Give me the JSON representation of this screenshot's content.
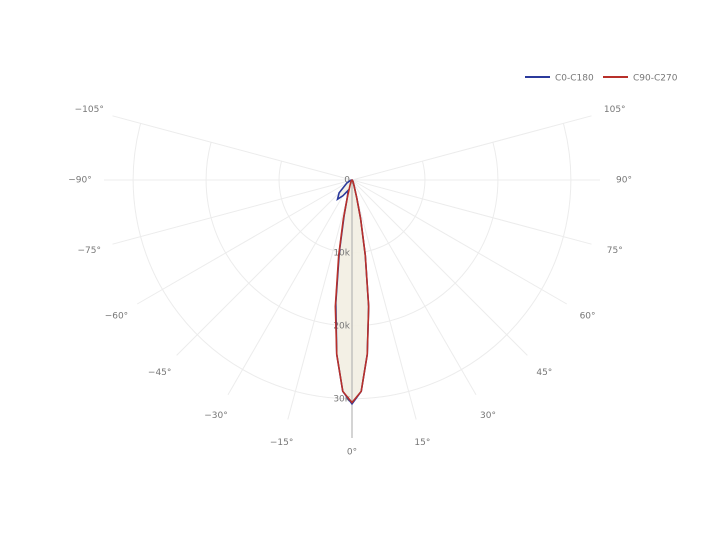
{
  "chart_data": {
    "type": "polar",
    "theta": [
      -90,
      -75,
      -60,
      -45,
      -37,
      -30,
      -20,
      -15,
      -12.5,
      -10,
      -7.5,
      -5,
      -2.5,
      0,
      2.5,
      5,
      7.5,
      10,
      12.5,
      15,
      20,
      30,
      45,
      60,
      75,
      90
    ],
    "series": [
      {
        "name": "C0-C180",
        "color": "#2b3a9c",
        "values": [
          0,
          200,
          800,
          2500,
          3300,
          2500,
          1500,
          2500,
          5000,
          10000,
          17000,
          24000,
          29000,
          30700,
          29000,
          24000,
          17500,
          10500,
          5500,
          2500,
          800,
          300,
          100,
          50,
          20,
          0
        ]
      },
      {
        "name": "C90-C270",
        "color": "#b8302a",
        "values": [
          0,
          20,
          50,
          100,
          200,
          300,
          800,
          2500,
          5500,
          10500,
          17500,
          24000,
          29000,
          30500,
          29000,
          24000,
          17500,
          10500,
          5500,
          2500,
          800,
          300,
          100,
          50,
          20,
          0
        ]
      }
    ],
    "rlim": [
      0,
      34000
    ],
    "rticks": [
      0,
      {
        "value": 10000,
        "label": "10k"
      },
      {
        "value": 20000,
        "label": "20k"
      },
      {
        "value": 30000,
        "label": "30k"
      }
    ],
    "thetaticks": [
      {
        "value": -105,
        "label": "−105°"
      },
      {
        "value": -90,
        "label": "−90°"
      },
      {
        "value": -75,
        "label": "−75°"
      },
      {
        "value": -60,
        "label": "−60°"
      },
      {
        "value": -45,
        "label": "−45°"
      },
      {
        "value": -30,
        "label": "−30°"
      },
      {
        "value": -15,
        "label": "−15°"
      },
      {
        "value": 0,
        "label": "0°"
      },
      {
        "value": 15,
        "label": "15°"
      },
      {
        "value": 30,
        "label": "30°"
      },
      {
        "value": 45,
        "label": "45°"
      },
      {
        "value": 60,
        "label": "60°"
      },
      {
        "value": 75,
        "label": "75°"
      },
      {
        "value": 90,
        "label": "90°"
      },
      {
        "value": 105,
        "label": "105°"
      }
    ],
    "fill": "#f3efe4",
    "grid": true
  }
}
